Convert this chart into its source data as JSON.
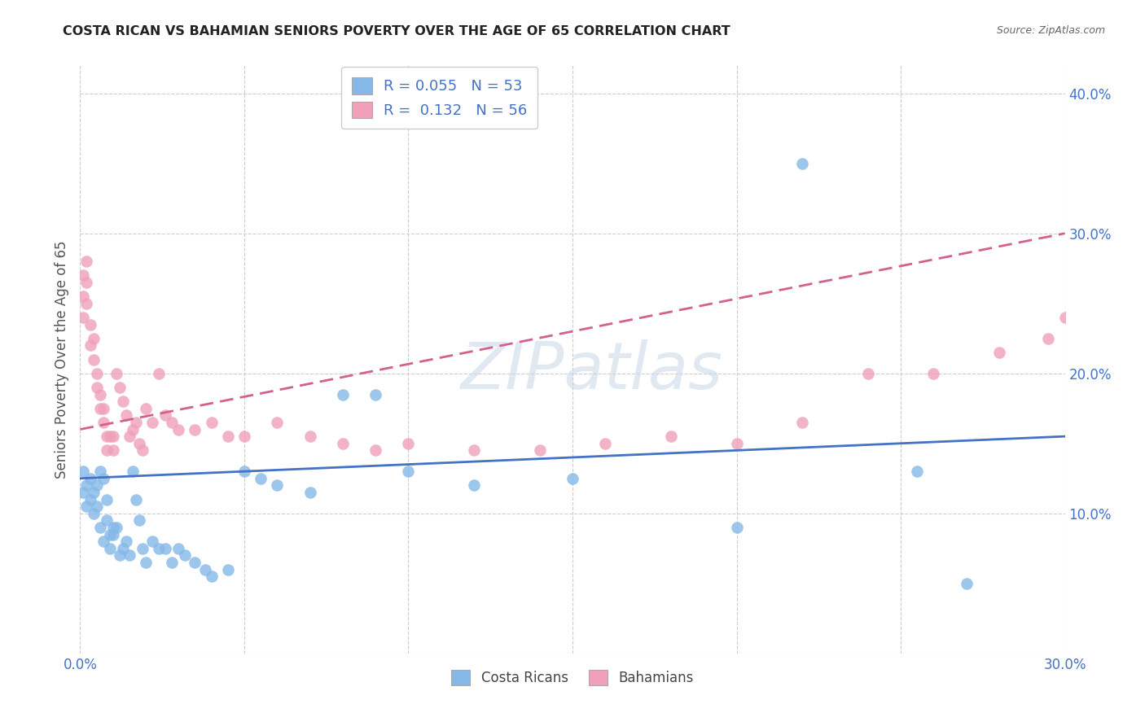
{
  "title": "COSTA RICAN VS BAHAMIAN SENIORS POVERTY OVER THE AGE OF 65 CORRELATION CHART",
  "source": "Source: ZipAtlas.com",
  "ylabel": "Seniors Poverty Over the Age of 65",
  "xlim": [
    0.0,
    0.3
  ],
  "ylim": [
    0.0,
    0.42
  ],
  "xtick_vals": [
    0.0,
    0.05,
    0.1,
    0.15,
    0.2,
    0.25,
    0.3
  ],
  "ytick_vals": [
    0.0,
    0.1,
    0.2,
    0.3,
    0.4
  ],
  "xtick_labels": [
    "0.0%",
    "",
    "",
    "",
    "",
    "",
    "30.0%"
  ],
  "ytick_labels": [
    "",
    "10.0%",
    "20.0%",
    "30.0%",
    "40.0%"
  ],
  "legend_cr_r": "0.055",
  "legend_cr_n": "53",
  "legend_bah_r": "0.132",
  "legend_bah_n": "56",
  "cr_color": "#85b8e8",
  "bah_color": "#f0a0b8",
  "cr_line_color": "#4472c4",
  "bah_line_color": "#d46090",
  "watermark": "ZIPatlas",
  "background_color": "#ffffff",
  "grid_color": "#cccccc",
  "cr_x": [
    0.001,
    0.001,
    0.002,
    0.002,
    0.003,
    0.003,
    0.004,
    0.004,
    0.005,
    0.005,
    0.006,
    0.006,
    0.007,
    0.007,
    0.008,
    0.008,
    0.009,
    0.009,
    0.01,
    0.01,
    0.011,
    0.012,
    0.013,
    0.014,
    0.015,
    0.016,
    0.017,
    0.018,
    0.019,
    0.02,
    0.022,
    0.024,
    0.026,
    0.028,
    0.03,
    0.032,
    0.035,
    0.038,
    0.04,
    0.045,
    0.05,
    0.055,
    0.06,
    0.07,
    0.08,
    0.09,
    0.1,
    0.12,
    0.15,
    0.2,
    0.22,
    0.255,
    0.27
  ],
  "cr_y": [
    0.13,
    0.115,
    0.12,
    0.105,
    0.125,
    0.11,
    0.115,
    0.1,
    0.12,
    0.105,
    0.13,
    0.09,
    0.125,
    0.08,
    0.11,
    0.095,
    0.085,
    0.075,
    0.09,
    0.085,
    0.09,
    0.07,
    0.075,
    0.08,
    0.07,
    0.13,
    0.11,
    0.095,
    0.075,
    0.065,
    0.08,
    0.075,
    0.075,
    0.065,
    0.075,
    0.07,
    0.065,
    0.06,
    0.055,
    0.06,
    0.13,
    0.125,
    0.12,
    0.115,
    0.185,
    0.185,
    0.13,
    0.12,
    0.125,
    0.09,
    0.35,
    0.13,
    0.05
  ],
  "bah_x": [
    0.001,
    0.001,
    0.001,
    0.002,
    0.002,
    0.002,
    0.003,
    0.003,
    0.004,
    0.004,
    0.005,
    0.005,
    0.006,
    0.006,
    0.007,
    0.007,
    0.008,
    0.008,
    0.009,
    0.01,
    0.01,
    0.011,
    0.012,
    0.013,
    0.014,
    0.015,
    0.016,
    0.017,
    0.018,
    0.019,
    0.02,
    0.022,
    0.024,
    0.026,
    0.028,
    0.03,
    0.035,
    0.04,
    0.045,
    0.05,
    0.06,
    0.07,
    0.08,
    0.09,
    0.1,
    0.12,
    0.14,
    0.16,
    0.18,
    0.2,
    0.22,
    0.24,
    0.26,
    0.28,
    0.295,
    0.3
  ],
  "bah_y": [
    0.27,
    0.255,
    0.24,
    0.28,
    0.265,
    0.25,
    0.235,
    0.22,
    0.225,
    0.21,
    0.2,
    0.19,
    0.185,
    0.175,
    0.175,
    0.165,
    0.155,
    0.145,
    0.155,
    0.155,
    0.145,
    0.2,
    0.19,
    0.18,
    0.17,
    0.155,
    0.16,
    0.165,
    0.15,
    0.145,
    0.175,
    0.165,
    0.2,
    0.17,
    0.165,
    0.16,
    0.16,
    0.165,
    0.155,
    0.155,
    0.165,
    0.155,
    0.15,
    0.145,
    0.15,
    0.145,
    0.145,
    0.15,
    0.155,
    0.15,
    0.165,
    0.2,
    0.2,
    0.215,
    0.225,
    0.24
  ]
}
